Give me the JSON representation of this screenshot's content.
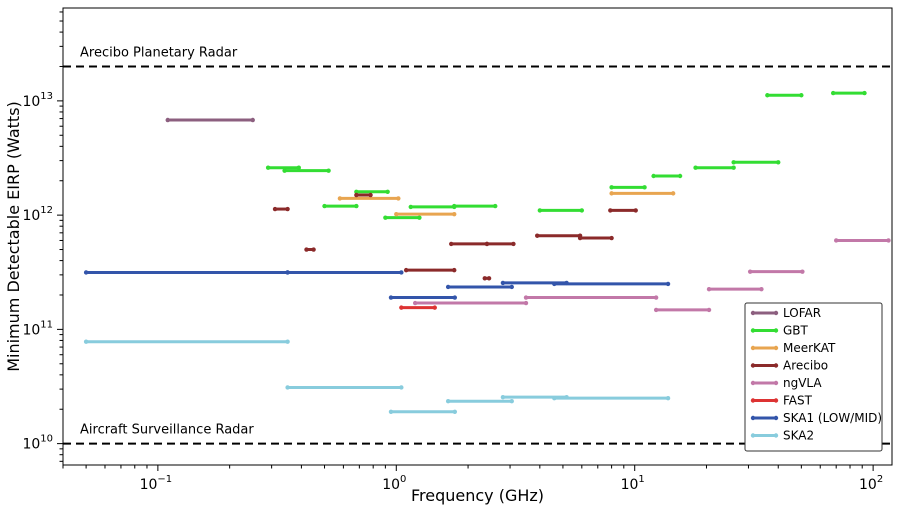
{
  "chart_data": {
    "type": "line",
    "title": "",
    "xlabel": "Frequency (GHz)",
    "ylabel": "Minimum Detectable EIRP (Watts)",
    "xscale": "log",
    "yscale": "log",
    "xlim": [
      0.04,
      120
    ],
    "ylim": [
      6500000000.0,
      65000000000000.0
    ],
    "grid": false,
    "legend_position": "lower-right",
    "x_ticks": [
      {
        "value": 0.1,
        "base": "10",
        "exp": "−1"
      },
      {
        "value": 1,
        "base": "10",
        "exp": "0"
      },
      {
        "value": 10,
        "base": "10",
        "exp": "1"
      },
      {
        "value": 100,
        "base": "10",
        "exp": "2"
      }
    ],
    "y_ticks": [
      {
        "value": 10000000000.0,
        "base": "10",
        "exp": "10"
      },
      {
        "value": 100000000000.0,
        "base": "10",
        "exp": "11"
      },
      {
        "value": 1000000000000.0,
        "base": "10",
        "exp": "12"
      },
      {
        "value": 10000000000000.0,
        "base": "10",
        "exp": "13"
      }
    ],
    "reference_lines": [
      {
        "name": "arecibo-planetary-radar",
        "label": "Arecibo Planetary Radar",
        "y": 20000000000000.0
      },
      {
        "name": "aircraft-surveillance-radar",
        "label": "Aircraft Surveillance Radar",
        "y": 10000000000.0
      }
    ],
    "series": [
      {
        "name": "LOFAR",
        "color": "#8c5f7f",
        "segments": [
          [
            0.11,
            0.25,
            6800000000000.0
          ]
        ]
      },
      {
        "name": "GBT",
        "color": "#33dd33",
        "segments": [
          [
            0.29,
            0.39,
            2600000000000.0
          ],
          [
            0.34,
            0.52,
            2450000000000.0
          ],
          [
            0.5,
            0.68,
            1200000000000.0
          ],
          [
            0.68,
            0.92,
            1600000000000.0
          ],
          [
            0.9,
            1.25,
            950000000000.0
          ],
          [
            1.15,
            1.75,
            1180000000000.0
          ],
          [
            1.75,
            2.6,
            1200000000000.0
          ],
          [
            4.0,
            6.0,
            1100000000000.0
          ],
          [
            8.0,
            11.0,
            1750000000000.0
          ],
          [
            12.0,
            15.5,
            2200000000000.0
          ],
          [
            18.0,
            26.0,
            2600000000000.0
          ],
          [
            26.0,
            40.0,
            2900000000000.0
          ],
          [
            36.0,
            50.0,
            11200000000000.0
          ],
          [
            68.0,
            92.0,
            11700000000000.0
          ]
        ]
      },
      {
        "name": "MeerKAT",
        "color": "#e8a550",
        "segments": [
          [
            0.58,
            1.02,
            1400000000000.0
          ],
          [
            1.0,
            1.75,
            1020000000000.0
          ],
          [
            8.0,
            14.5,
            1550000000000.0
          ]
        ]
      },
      {
        "name": "Arecibo",
        "color": "#8b2a2a",
        "segments": [
          [
            0.31,
            0.35,
            1130000000000.0
          ],
          [
            0.42,
            0.45,
            500000000000.0
          ],
          [
            0.68,
            0.78,
            1500000000000.0
          ],
          [
            1.1,
            1.75,
            330000000000.0
          ],
          [
            1.7,
            2.4,
            560000000000.0
          ],
          [
            2.4,
            3.1,
            560000000000.0
          ],
          [
            2.35,
            2.45,
            280000000000.0
          ],
          [
            3.9,
            5.9,
            660000000000.0
          ],
          [
            5.9,
            8.0,
            630000000000.0
          ],
          [
            7.9,
            10.1,
            1100000000000.0
          ]
        ]
      },
      {
        "name": "ngVLA",
        "color": "#c278a8",
        "segments": [
          [
            1.2,
            3.5,
            170000000000.0
          ],
          [
            3.5,
            12.3,
            190000000000.0
          ],
          [
            12.3,
            20.5,
            148000000000.0
          ],
          [
            20.5,
            34.0,
            225000000000.0
          ],
          [
            30.5,
            50.5,
            320000000000.0
          ],
          [
            70.0,
            116.0,
            600000000000.0
          ]
        ]
      },
      {
        "name": "FAST",
        "color": "#dd3333",
        "segments": [
          [
            1.05,
            1.45,
            155000000000.0
          ]
        ]
      },
      {
        "name": "SKA1 (LOW/MID)",
        "color": "#3355aa",
        "segments": [
          [
            0.05,
            0.35,
            315000000000.0
          ],
          [
            0.35,
            1.05,
            315000000000.0
          ],
          [
            0.95,
            1.76,
            190000000000.0
          ],
          [
            1.65,
            3.05,
            235000000000.0
          ],
          [
            2.8,
            5.18,
            255000000000.0
          ],
          [
            4.6,
            13.8,
            250000000000.0
          ]
        ]
      },
      {
        "name": "SKA2",
        "color": "#88ccdd",
        "segments": [
          [
            0.05,
            0.35,
            78000000000.0
          ],
          [
            0.35,
            1.05,
            31000000000.0
          ],
          [
            0.95,
            1.76,
            19000000000.0
          ],
          [
            1.65,
            3.05,
            23500000000.0
          ],
          [
            2.8,
            5.18,
            25500000000.0
          ],
          [
            4.6,
            13.8,
            25000000000.0
          ]
        ]
      }
    ]
  }
}
